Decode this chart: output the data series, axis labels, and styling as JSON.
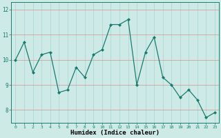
{
  "x": [
    0,
    1,
    2,
    3,
    4,
    5,
    6,
    7,
    8,
    9,
    10,
    11,
    12,
    13,
    14,
    15,
    16,
    17,
    18,
    19,
    20,
    21,
    22,
    23
  ],
  "y": [
    10.0,
    10.7,
    9.5,
    10.2,
    10.3,
    8.7,
    8.8,
    9.7,
    9.3,
    10.2,
    10.4,
    11.4,
    11.4,
    11.6,
    9.0,
    10.3,
    10.9,
    9.3,
    9.0,
    8.5,
    8.8,
    8.4,
    7.7,
    7.9
  ],
  "line_color": "#1a7a6e",
  "marker": "D",
  "marker_size": 2.0,
  "bg_color": "#cdeae7",
  "grid_color": "#b0d8d4",
  "xlabel": "Humidex (Indice chaleur)",
  "ylim": [
    7.5,
    12.3
  ],
  "yticks": [
    8,
    9,
    10,
    11,
    12
  ],
  "xtick_labels": [
    "0",
    "1",
    "2",
    "3",
    "4",
    "5",
    "6",
    "7",
    "8",
    "9",
    "10",
    "11",
    "12",
    "13",
    "14",
    "15",
    "16",
    "17",
    "18",
    "19",
    "20",
    "21",
    "22",
    "23"
  ],
  "xlim": [
    -0.5,
    23.5
  ]
}
